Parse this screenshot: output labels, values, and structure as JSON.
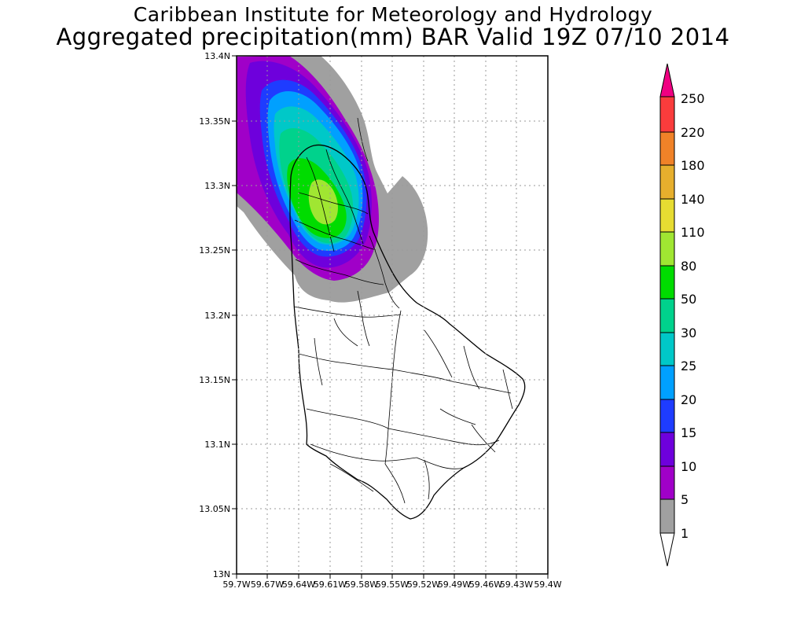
{
  "header": {
    "title_line1": "Caribbean Institute for Meteorology and Hydrology",
    "title_line2": "Aggregated precipitation(mm) BAR Valid 19Z 07/10 2014"
  },
  "map": {
    "lon_labels": [
      "59.7W",
      "59.67W",
      "59.64W",
      "59.61W",
      "59.58W",
      "59.55W",
      "59.52W",
      "59.49W",
      "59.46W",
      "59.43W",
      "59.4W"
    ],
    "lat_labels": [
      "13.4N",
      "13.35N",
      "13.3N",
      "13.25N",
      "13.2N",
      "13.15N",
      "13.1N",
      "13.05N",
      "13N"
    ],
    "lon_range": [
      -59.7,
      -59.4
    ],
    "lat_range": [
      13.0,
      13.4
    ],
    "gridlines": true,
    "background_color": "#ffffff"
  },
  "colorbar": {
    "labels": [
      "1",
      "5",
      "10",
      "15",
      "20",
      "25",
      "30",
      "50",
      "80",
      "110",
      "140",
      "180",
      "220",
      "250"
    ],
    "colors": [
      "#a0a0a0",
      "#a000c8",
      "#6e00dc",
      "#1e3cff",
      "#00a0ff",
      "#00c8c8",
      "#00d28c",
      "#00dc00",
      "#a0e632",
      "#e6dc32",
      "#e6af2d",
      "#f08228",
      "#fa3c3c",
      "#f00082"
    ],
    "lower_arrow_color": "#ffffff",
    "upper_arrow_color": "#f00082"
  },
  "chart_data": {
    "type": "heatmap",
    "title": "Aggregated precipitation(mm) BAR Valid 19Z 07/10 2014",
    "units": "mm",
    "xlim": [
      -59.7,
      -59.4
    ],
    "ylim": [
      13.0,
      13.4
    ],
    "levels": [
      1,
      5,
      10,
      15,
      20,
      25,
      30,
      50,
      80,
      110,
      140,
      180,
      220,
      250
    ],
    "max_region": "northern Barbados, near 13.28N 59.61W",
    "approx_max_mm": 60
  }
}
